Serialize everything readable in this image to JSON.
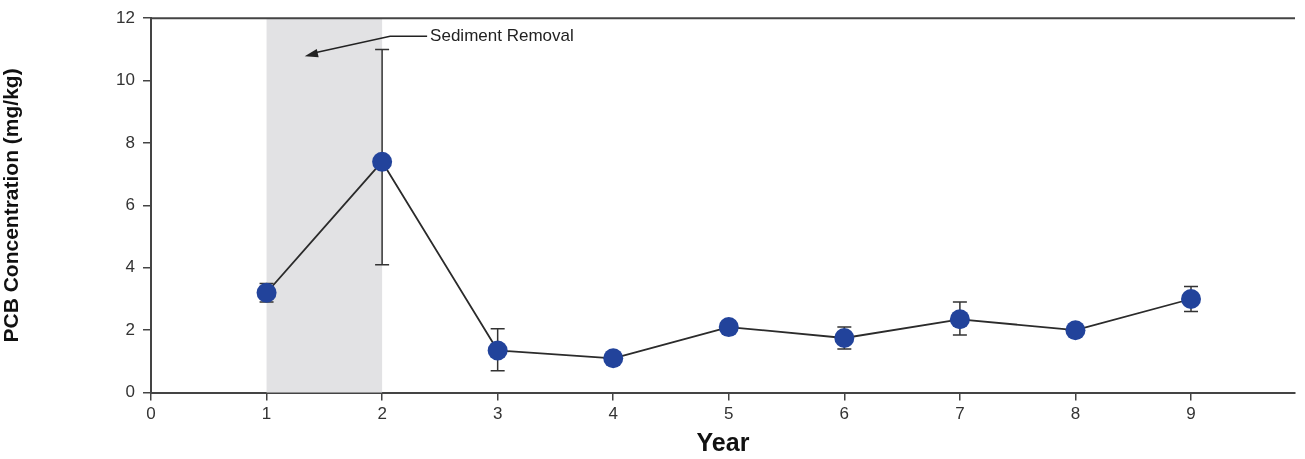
{
  "chart_data": {
    "type": "line",
    "xlabel": "Year",
    "ylabel": "PCB Concentration (mg/kg)",
    "x": [
      1,
      2,
      3,
      4,
      5,
      6,
      7,
      8,
      9
    ],
    "values": [
      3.2,
      7.4,
      1.35,
      1.1,
      2.1,
      1.75,
      2.35,
      2.0,
      3.0
    ],
    "errors": [
      [
        2.9,
        3.5
      ],
      [
        4.1,
        11
      ],
      [
        0.7,
        2.05
      ],
      null,
      null,
      [
        1.4,
        2.1
      ],
      [
        1.85,
        2.9
      ],
      null,
      [
        2.6,
        3.4
      ]
    ],
    "color": "#22439b",
    "marker": "circle",
    "line_style": "solid",
    "grid": false,
    "xlim": [
      0,
      9.9
    ],
    "xticks": [
      0,
      1,
      2,
      3,
      4,
      5,
      6,
      7,
      8,
      9
    ],
    "ylim": [
      0,
      12
    ],
    "yticks": [
      0,
      2,
      4,
      6,
      8,
      10,
      12
    ],
    "bands": [
      {
        "axis": "x",
        "from": 1,
        "to": 2,
        "label": "Sediment Removal",
        "color": "#e2e2e4"
      }
    ]
  }
}
